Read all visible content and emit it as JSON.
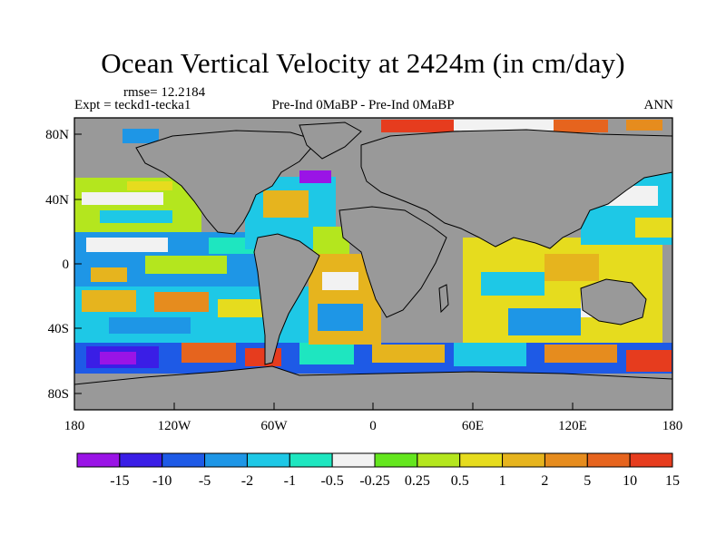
{
  "header": {
    "title": "Ocean Vertical Velocity at 2424m (in cm/day)",
    "rmse": "rmse= 12.2184",
    "expt": "Expt = teckd1-tecka1",
    "comparison": "Pre-Ind 0MaBP - Pre-Ind 0MaBP",
    "season": "ANN"
  },
  "map": {
    "projection": "cylindrical-equidistant",
    "lon_range": [
      -180,
      180
    ],
    "lat_range": [
      -90,
      90
    ],
    "land_color": "#999999",
    "x_ticks": [
      "180",
      "120W",
      "60W",
      "0",
      "60E",
      "120E",
      "180"
    ],
    "y_ticks": [
      "80N",
      "40N",
      "0",
      "40S",
      "80S"
    ]
  },
  "colorbar": {
    "colors": [
      "#9a14e6",
      "#3a1ee6",
      "#1e5ae6",
      "#1e96e6",
      "#1ec8e6",
      "#1ee6c0",
      "#f2f2f2",
      "#64e61e",
      "#b4e61e",
      "#e6dc1e",
      "#e6b41e",
      "#e68c1e",
      "#e6641e",
      "#e63c1e"
    ],
    "labels": [
      "-15",
      "-10",
      "-5",
      "-2",
      "-1",
      "-0.5",
      "-0.25",
      "0.25",
      "0.5",
      "1",
      "2",
      "5",
      "10",
      "15"
    ]
  }
}
